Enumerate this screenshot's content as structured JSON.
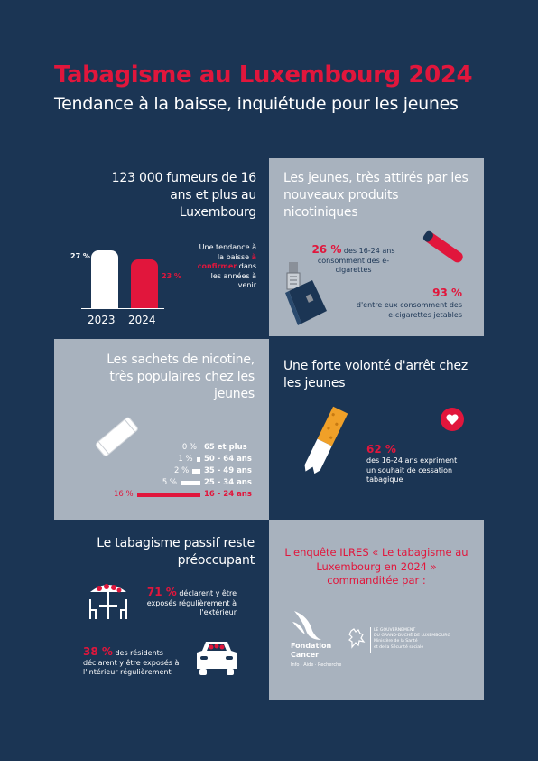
{
  "header": {
    "title": "Tabagisme au Luxembourg 2024",
    "subtitle": "Tendance à la baisse, inquiétude pour les jeunes"
  },
  "smokers": {
    "headline": "123 000 fumeurs de 16 ans et plus au Luxembourg",
    "note_1": "Une tendance à la baisse",
    "note_2": "à confirmer",
    "note_3": "dans les années à venir",
    "chart_data": {
      "type": "bar",
      "categories": [
        "2023",
        "2024"
      ],
      "values": [
        27,
        23
      ],
      "labels": [
        "27 %",
        "23 %"
      ],
      "colors": [
        "#ffffff",
        "#e1163c"
      ]
    }
  },
  "youth": {
    "headline": "Les jeunes, très attirés par les nouveaux produits nicotiniques",
    "stat1_value": "26 %",
    "stat1_text": "des 16-24 ans consomment des e-cigarettes",
    "stat2_value": "93 %",
    "stat2_text": "d'entre eux consomment des e-cigarettes jetables"
  },
  "pouches": {
    "headline": "Les sachets de nicotine, très populaires chez les jeunes",
    "chart_data": {
      "type": "bar",
      "categories": [
        "65 et plus",
        "50 - 64 ans",
        "35 - 49 ans",
        "25 - 34 ans",
        "16 - 24 ans"
      ],
      "values": [
        0,
        1,
        2,
        5,
        16
      ],
      "labels": [
        "0 %",
        "1 %",
        "2 %",
        "5 %",
        "16 %"
      ]
    }
  },
  "quit": {
    "headline": "Une forte volonté d'arrêt chez les jeunes",
    "stat_value": "62 %",
    "stat_text": "des 16-24 ans expriment un souhait de cessation tabagique"
  },
  "passive": {
    "headline": "Le tabagisme passif reste préoccupant",
    "stat1_value": "71 %",
    "stat1_text": "déclarent y être exposés régulièrement à l'extérieur",
    "stat2_value": "38 %",
    "stat2_text": "des résidents déclarent y être exposés à l'intérieur régulièrement"
  },
  "survey": {
    "text": "L'enquête ILRES « Le tabagisme au Luxembourg en 2024 » commanditée par :",
    "logo1_name": "Fondation Cancer",
    "logo1_tagline": "Info · Aide · Recherche",
    "logo2_line1": "LE GOUVERNEMENT",
    "logo2_line2": "DU GRAND-DUCHÉ DE LUXEMBOURG",
    "logo2_line3": "Ministère de la Santé",
    "logo2_line4": "et de la Sécurité sociale"
  }
}
